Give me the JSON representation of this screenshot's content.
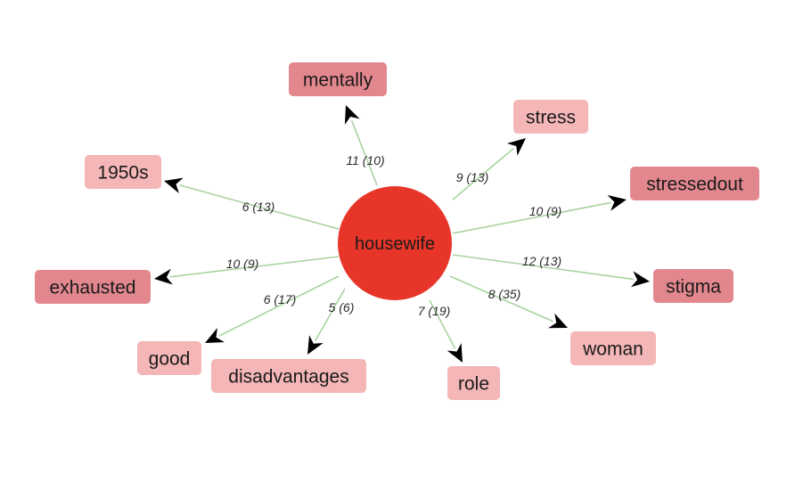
{
  "hub": {
    "label": "housewife",
    "color": "#e8352a"
  },
  "colors": {
    "edge": "#a9d3a0",
    "arrow": "#000000",
    "node_light": "#f4b6b6",
    "node_medium": "#e3878f"
  },
  "nodes": [
    {
      "id": "mentally",
      "label": "mentally",
      "edge_label": "11 (10)",
      "shade": "medium"
    },
    {
      "id": "stress",
      "label": "stress",
      "edge_label": "9 (13)",
      "shade": "light"
    },
    {
      "id": "stressedout",
      "label": "stressedout",
      "edge_label": "10 (9)",
      "shade": "medium"
    },
    {
      "id": "stigma",
      "label": "stigma",
      "edge_label": "12 (13)",
      "shade": "medium"
    },
    {
      "id": "woman",
      "label": "woman",
      "edge_label": "8 (35)",
      "shade": "light"
    },
    {
      "id": "role",
      "label": "role",
      "edge_label": "7 (19)",
      "shade": "light"
    },
    {
      "id": "disadvantages",
      "label": "disadvantages",
      "edge_label": "5 (6)",
      "shade": "light"
    },
    {
      "id": "good",
      "label": "good",
      "edge_label": "6 (17)",
      "shade": "light"
    },
    {
      "id": "exhausted",
      "label": "exhausted",
      "edge_label": "10 (9)",
      "shade": "medium"
    },
    {
      "id": "1950s",
      "label": "1950s",
      "edge_label": "6 (13)",
      "shade": "light"
    }
  ]
}
